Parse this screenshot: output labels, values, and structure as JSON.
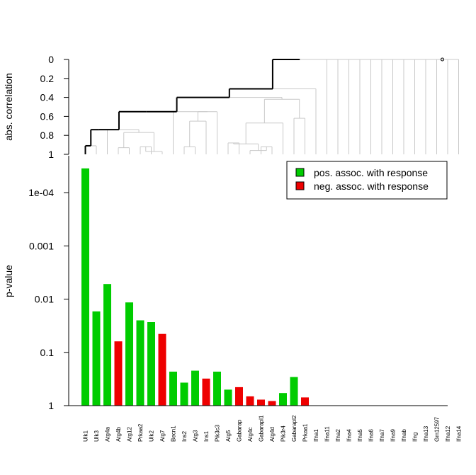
{
  "chart_data": {
    "type": "bar",
    "categories": [
      "Ulk1",
      "Ulk3",
      "Atg4a",
      "Atg4b",
      "Atg12",
      "Prkaa2",
      "Ulk2",
      "Atg7",
      "Becn1",
      "Ins2",
      "Atg3",
      "Ins1",
      "Pik3c3",
      "Atg5",
      "Gabarap",
      "Atg4c",
      "Gabarapl1",
      "Atg4d",
      "Pik3r4",
      "Gabarapl2",
      "Prkaa1",
      "Ifna1",
      "Ifna11",
      "Ifna2",
      "Ifna4",
      "Ifna5",
      "Ifna6",
      "Ifna7",
      "Ifna9",
      "Ifnab",
      "Ifng",
      "Ifna13",
      "Gm12597",
      "Ifna12",
      "Ifna14"
    ],
    "values": [
      3.5e-05,
      0.017,
      0.0052,
      0.062,
      0.0115,
      0.025,
      0.027,
      0.045,
      0.23,
      0.37,
      0.22,
      0.31,
      0.23,
      0.5,
      0.45,
      0.67,
      0.77,
      0.82,
      0.58,
      0.29,
      0.7,
      1,
      1,
      1,
      1,
      1,
      1,
      1,
      1,
      1,
      1,
      1,
      1,
      1,
      1
    ],
    "association": [
      "pos",
      "pos",
      "pos",
      "neg",
      "pos",
      "pos",
      "pos",
      "neg",
      "pos",
      "pos",
      "pos",
      "neg",
      "pos",
      "pos",
      "neg",
      "neg",
      "neg",
      "neg",
      "pos",
      "pos",
      "neg",
      "none",
      "none",
      "none",
      "none",
      "none",
      "none",
      "none",
      "none",
      "none",
      "none",
      "none",
      "none",
      "none",
      "none"
    ],
    "ylabel": "p-value",
    "yscale": "log-reversed",
    "ylim": [
      1,
      3e-05
    ],
    "yticks": [
      {
        "value": 0.0001,
        "label": "1e-04"
      },
      {
        "value": 0.001,
        "label": "0.001"
      },
      {
        "value": 0.01,
        "label": "0.01"
      },
      {
        "value": 0.1,
        "label": "0.1"
      },
      {
        "value": 1,
        "label": "1"
      }
    ],
    "legend": {
      "position": "top-right",
      "entries": [
        {
          "label": "pos. assoc. with response",
          "color": "#00cc00"
        },
        {
          "label": "neg. assoc. with response",
          "color": "#ee0000"
        }
      ]
    },
    "dendrogram": {
      "ylabel": "abs. correlation",
      "ylim": [
        1,
        0
      ],
      "yticks": [
        {
          "value": 0,
          "label": "0"
        },
        {
          "value": 0.2,
          "label": "0.2"
        },
        {
          "value": 0.4,
          "label": "0.4"
        },
        {
          "value": 0.6,
          "label": "0.6"
        },
        {
          "value": 0.8,
          "label": "0.8"
        },
        {
          "value": 1,
          "label": "1"
        }
      ],
      "highlight_leaf": "Ulk1",
      "merges": [
        {
          "id": "n1",
          "a": "Ulk1",
          "b": "Ulk3",
          "h": 0.91,
          "hl": true
        },
        {
          "id": "n2",
          "a": "n1",
          "b": "Atg4a",
          "h": 0.74,
          "hl": true
        },
        {
          "id": "n3",
          "a": "Atg4b",
          "b": "Atg12",
          "h": 0.93,
          "hl": false
        },
        {
          "id": "n4",
          "a": "Prkaa2",
          "b": "Ulk2",
          "h": 0.92,
          "hl": false
        },
        {
          "id": "n5",
          "a": "n4",
          "b": "Atg7",
          "h": 0.97,
          "hl": false
        },
        {
          "id": "n6",
          "a": "n3",
          "b": "n5",
          "h": 0.77,
          "hl": false
        },
        {
          "id": "n7",
          "a": "n2",
          "b": "n6",
          "h": 0.74,
          "hl": true
        },
        {
          "id": "n8",
          "a": "n7",
          "b": "Becn1",
          "h": 0.55,
          "hl": true
        },
        {
          "id": "n9",
          "a": "Ins2",
          "b": "Atg3",
          "h": 0.92,
          "hl": false
        },
        {
          "id": "n10",
          "a": "n9",
          "b": "Ins1",
          "h": 0.65,
          "hl": false
        },
        {
          "id": "n11",
          "a": "n10",
          "b": "Pik3c3",
          "h": 0.55,
          "hl": false
        },
        {
          "id": "n12",
          "a": "n8",
          "b": "n11",
          "h": 0.55,
          "hl": true
        },
        {
          "id": "n13",
          "a": "Atg5",
          "b": "Gabarap",
          "h": 0.88,
          "hl": false
        },
        {
          "id": "n14",
          "a": "Gabarapl1",
          "b": "Atg4d",
          "h": 0.92,
          "hl": false
        },
        {
          "id": "n15",
          "a": "Atg4c",
          "b": "n14",
          "h": 0.96,
          "hl": false
        },
        {
          "id": "n16",
          "a": "n13",
          "b": "n15",
          "h": 0.89,
          "hl": false
        },
        {
          "id": "n17",
          "a": "n16",
          "b": "Pik3r4",
          "h": 0.67,
          "hl": false
        },
        {
          "id": "n18",
          "a": "Gabarapl2",
          "b": "Prkaa1",
          "h": 0.62,
          "hl": false
        },
        {
          "id": "n19",
          "a": "n17",
          "b": "n18",
          "h": 0.42,
          "hl": false
        },
        {
          "id": "n20",
          "a": "n12",
          "b": "n19",
          "h": 0.4,
          "hl": true
        },
        {
          "id": "n21",
          "a": "n20",
          "b": "Ifna1",
          "h": 0.31,
          "hl": true
        },
        {
          "id": "n22",
          "a": "n21",
          "b": "Ifna11",
          "h": 0.0,
          "hl": true
        }
      ],
      "zero_height_leaves": [
        "Ifna2",
        "Ifna4",
        "Ifna5",
        "Ifna6",
        "Ifna7",
        "Ifna9",
        "Ifnab",
        "Ifng",
        "Ifna13",
        "Gm12597",
        "Ifna12",
        "Ifna14"
      ]
    }
  }
}
